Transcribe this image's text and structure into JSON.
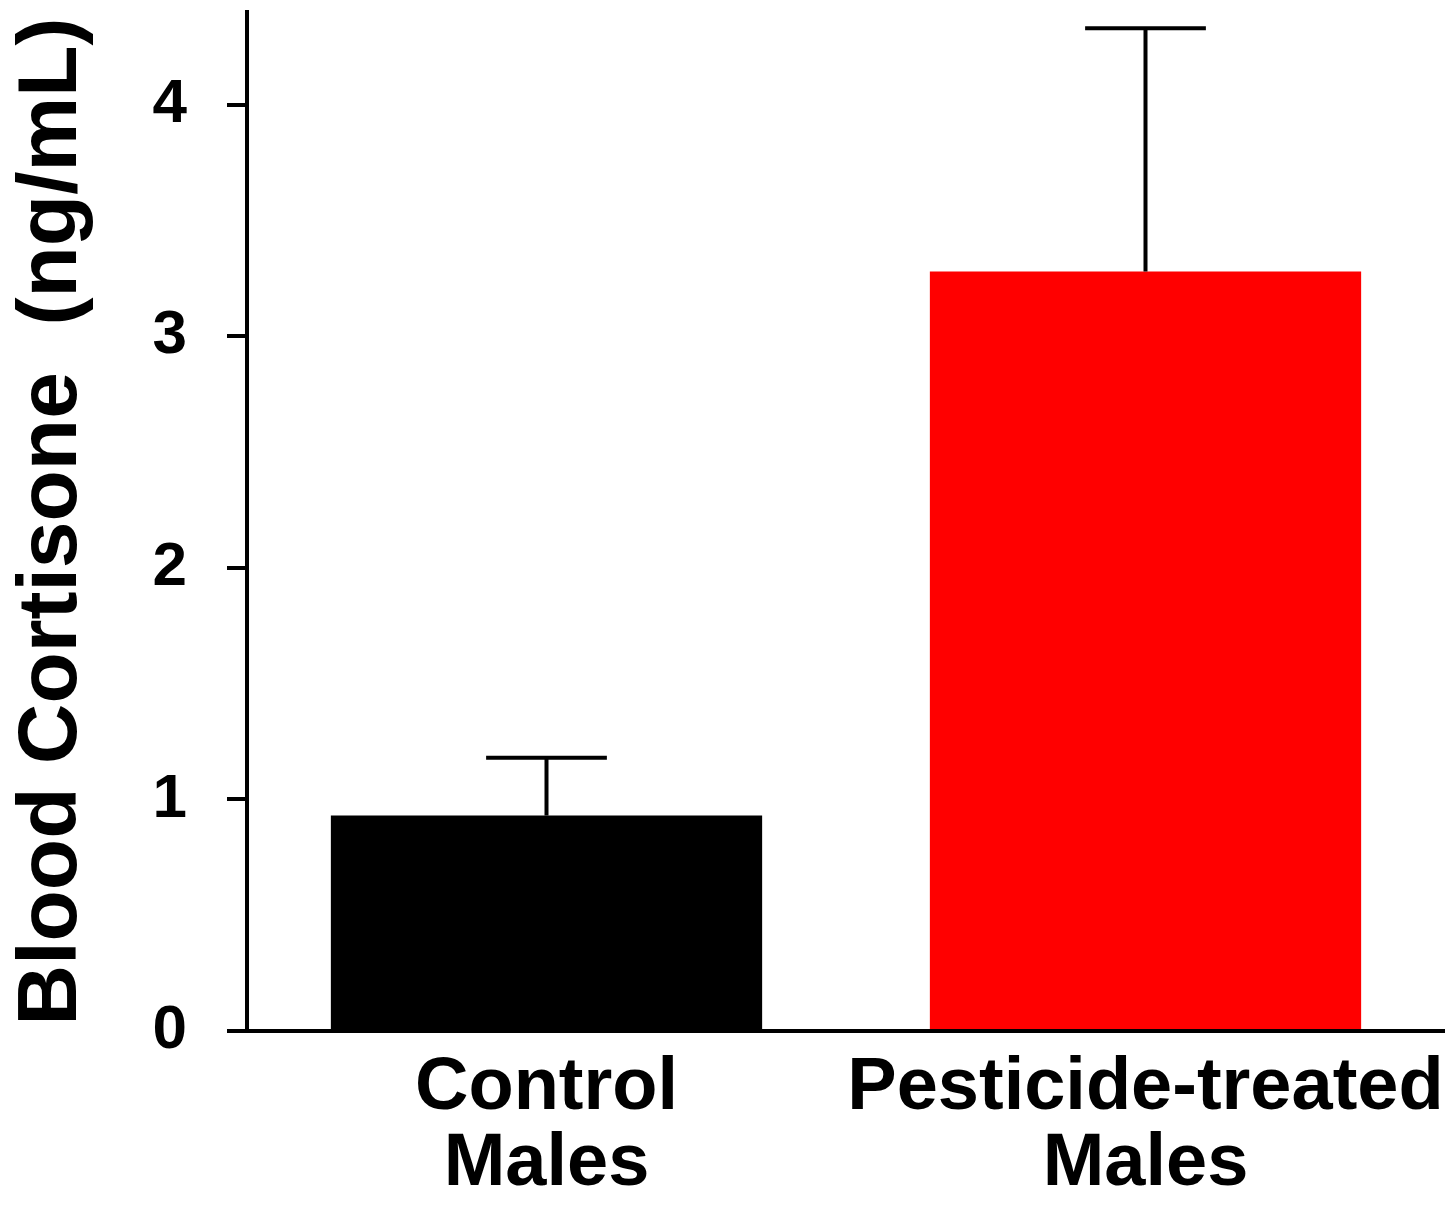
{
  "chart_data": {
    "type": "bar",
    "ylabel": "Blood Cortisone  (ng/mL)",
    "categories": [
      "Control\nMales",
      "Pesticide-treated\nMales"
    ],
    "values": [
      0.93,
      3.28
    ],
    "colors": [
      "#000000",
      "#ff0000"
    ],
    "errors": [
      [
        0.93,
        1.18
      ],
      [
        3.28,
        4.33
      ]
    ],
    "ylim": [
      0,
      4.4
    ],
    "yticks": [
      0,
      1,
      2,
      3,
      4
    ],
    "grid": false,
    "legend": false
  }
}
